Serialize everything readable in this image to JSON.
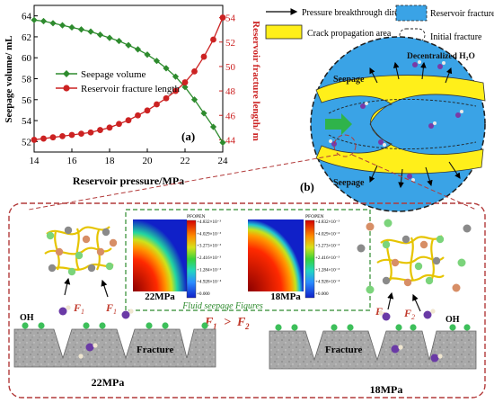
{
  "panel_a": {
    "tag": "(a)",
    "legend": [
      "Seepage volume",
      "Reservoir fracture length"
    ],
    "ylabel_left": "Seepage volume/ mL",
    "ylabel_right": "Reservoir fracture length/ m",
    "xlabel": "Reservoir pressure/MPa",
    "x_ticks": [
      "14",
      "16",
      "18",
      "20",
      "22",
      "24"
    ],
    "y_left_ticks": [
      "52",
      "54",
      "56",
      "58",
      "60",
      "62",
      "64"
    ],
    "y_right_ticks": [
      "44",
      "46",
      "48",
      "50",
      "52",
      "54"
    ],
    "colors": {
      "seepage": "#2e8b2e",
      "fracture": "#cc2222"
    }
  },
  "chart_data": {
    "type": "line",
    "title": "",
    "xlabel": "Reservoir pressure/MPa",
    "ylabel": "Seepage volume/ mL",
    "y2label": "Reservoir fracture length/ m",
    "xlim": [
      14,
      24
    ],
    "ylim": [
      51,
      65
    ],
    "y2lim": [
      43,
      55
    ],
    "x": [
      14,
      14.5,
      15,
      15.5,
      16,
      16.5,
      17,
      17.5,
      18,
      18.5,
      19,
      19.5,
      20,
      20.5,
      21,
      21.5,
      22,
      22.5,
      23,
      23.5,
      24
    ],
    "series": [
      {
        "name": "Seepage volume",
        "axis": "left",
        "values": [
          63.6,
          63.5,
          63.3,
          63.1,
          62.9,
          62.7,
          62.5,
          62.2,
          61.9,
          61.6,
          61.2,
          60.8,
          60.3,
          59.7,
          59.0,
          58.2,
          57.2,
          56.0,
          54.7,
          53.4,
          51.9
        ]
      },
      {
        "name": "Reservoir fracture length",
        "axis": "right",
        "values": [
          44.0,
          44.1,
          44.2,
          44.3,
          44.4,
          44.5,
          44.6,
          44.8,
          45.0,
          45.3,
          45.6,
          46.0,
          46.4,
          46.9,
          47.4,
          48.0,
          48.7,
          49.6,
          50.8,
          52.2,
          54.0
        ]
      }
    ]
  },
  "panel_b": {
    "tag": "(b)",
    "legend": {
      "arrow": "Pressure breakthrough direction",
      "reservoir": "Reservoir fracture",
      "crack": "Crack propagation area",
      "initial": "Initial fracture"
    },
    "seepage_top": "Seepage",
    "seepage_bottom": "Seepage",
    "decentralized": "Decentralized H₂O",
    "colors": {
      "blue": "#3aa3e6",
      "yellow": "#ffef1a"
    }
  },
  "bottom": {
    "left_pressure": "22MPa",
    "right_pressure": "18MPa",
    "fracture_left": "Fracture",
    "fracture_right": "Fracture",
    "oh_left": "OH",
    "oh_right": "OH",
    "force_left_1": "F",
    "force_left_1_sub": "1",
    "force_left_2": "F",
    "force_left_2_sub": "1",
    "force_right_1": "F",
    "force_right_1_sub": "2",
    "force_right_2": "F",
    "force_right_2_sub": "2",
    "inequality_f1": "F",
    "inequality_f1_sub": "1",
    "inequality_op": ">",
    "inequality_f2": "F",
    "inequality_f2_sub": "2",
    "seepage_caption": "Fluid seepage Figures",
    "map_left_label": "22MPa",
    "map_right_label": "18MPa",
    "colorbar_title": "PFOPEN",
    "colorbar_ticks": [
      "+4.832×10⁻³",
      "+4.029×10⁻³",
      "+3.273×10⁻³",
      "+2.416×10⁻³",
      "+1.284×10⁻³",
      "+4.928×10⁻⁴",
      "+0.000"
    ]
  }
}
